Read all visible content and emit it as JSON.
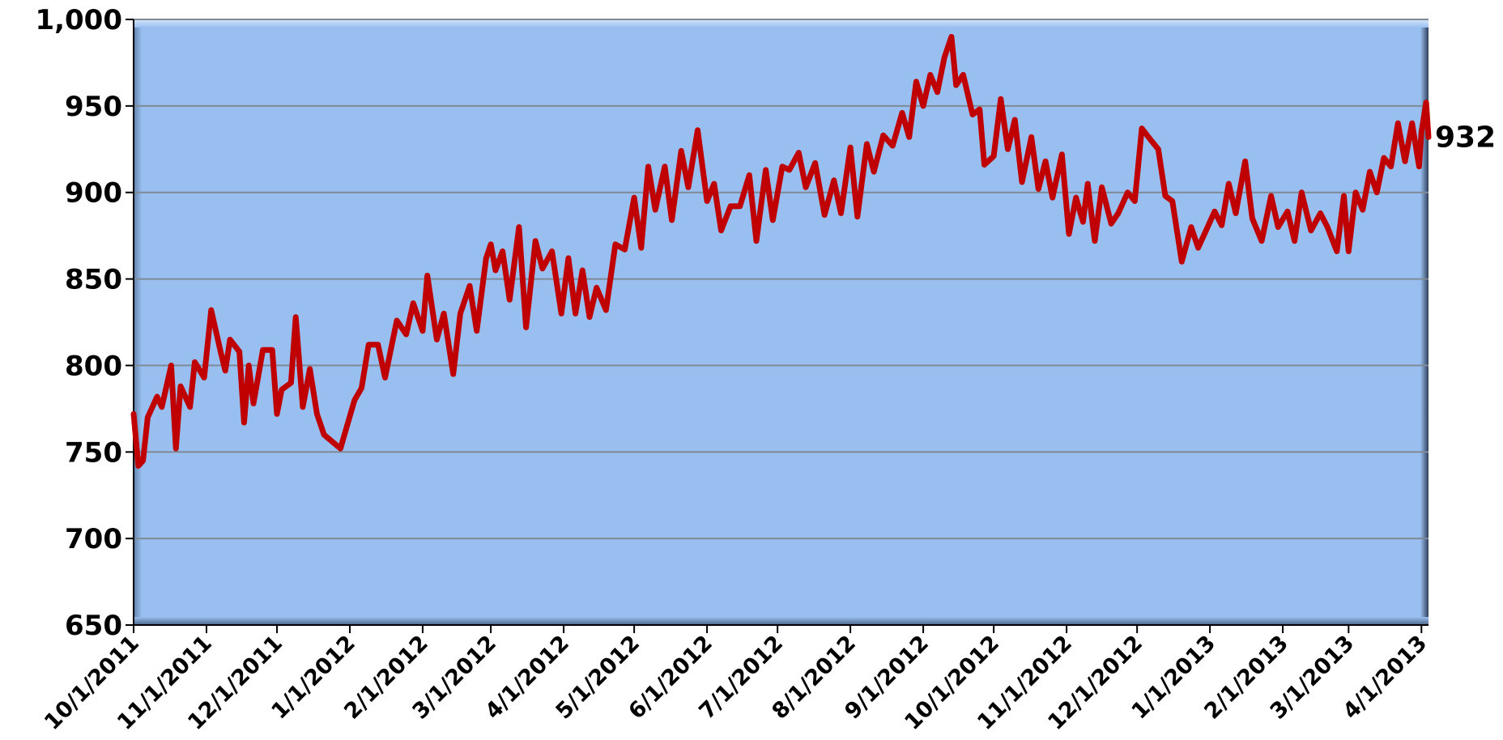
{
  "chart_data": {
    "type": "line",
    "x": [
      "10/1/2011",
      "10/3/2011",
      "10/5/2011",
      "10/7/2011",
      "10/11/2011",
      "10/13/2011",
      "10/17/2011",
      "10/19/2011",
      "10/21/2011",
      "10/25/2011",
      "10/27/2011",
      "10/31/2011",
      "11/3/2011",
      "11/7/2011",
      "11/9/2011",
      "11/11/2011",
      "11/15/2011",
      "11/17/2011",
      "11/19/2011",
      "11/21/2011",
      "11/25/2011",
      "11/29/2011",
      "12/1/2011",
      "12/3/2011",
      "12/7/2011",
      "12/9/2011",
      "12/12/2011",
      "12/15/2011",
      "12/18/2011",
      "12/21/2011",
      "12/28/2011",
      "1/3/2012",
      "1/6/2012",
      "1/9/2012",
      "1/13/2012",
      "1/16/2012",
      "1/21/2012",
      "1/25/2012",
      "1/28/2012",
      "2/1/2012",
      "2/3/2012",
      "2/7/2012",
      "2/10/2012",
      "2/14/2012",
      "2/17/2012",
      "2/21/2012",
      "2/24/2012",
      "2/28/2012",
      "3/1/2012",
      "3/3/2012",
      "3/6/2012",
      "3/9/2012",
      "3/13/2012",
      "3/16/2012",
      "3/20/2012",
      "3/23/2012",
      "3/27/2012",
      "3/31/2012",
      "4/3/2012",
      "4/6/2012",
      "4/9/2012",
      "4/12/2012",
      "4/15/2012",
      "4/19/2012",
      "4/23/2012",
      "4/27/2012",
      "5/1/2012",
      "5/4/2012",
      "5/7/2012",
      "5/10/2012",
      "5/14/2012",
      "5/17/2012",
      "5/21/2012",
      "5/24/2012",
      "5/28/2012",
      "6/1/2012",
      "6/4/2012",
      "6/7/2012",
      "6/11/2012",
      "6/15/2012",
      "6/19/2012",
      "6/22/2012",
      "6/26/2012",
      "6/29/2012",
      "7/3/2012",
      "7/6/2012",
      "7/10/2012",
      "7/13/2012",
      "7/17/2012",
      "7/21/2012",
      "7/25/2012",
      "7/28/2012",
      "8/1/2012",
      "8/4/2012",
      "8/8/2012",
      "8/11/2012",
      "8/15/2012",
      "8/19/2012",
      "8/23/2012",
      "8/26/2012",
      "8/29/2012",
      "9/1/2012",
      "9/4/2012",
      "9/7/2012",
      "9/10/2012",
      "9/13/2012",
      "9/15/2012",
      "9/18/2012",
      "9/22/2012",
      "9/25/2012",
      "9/27/2012",
      "10/1/2012",
      "10/4/2012",
      "10/7/2012",
      "10/10/2012",
      "10/13/2012",
      "10/17/2012",
      "10/20/2012",
      "10/23/2012",
      "10/26/2012",
      "10/30/2012",
      "11/2/2012",
      "11/5/2012",
      "11/8/2012",
      "11/10/2012",
      "11/13/2012",
      "11/16/2012",
      "11/20/2012",
      "11/23/2012",
      "11/27/2012",
      "11/30/2012",
      "12/3/2012",
      "12/7/2012",
      "12/10/2012",
      "12/13/2012",
      "12/16/2012",
      "12/20/2012",
      "12/24/2012",
      "12/27/2012",
      "12/31/2012",
      "1/3/2013",
      "1/6/2013",
      "1/9/2013",
      "1/12/2013",
      "1/16/2013",
      "1/19/2013",
      "1/23/2013",
      "1/27/2013",
      "1/30/2013",
      "2/3/2013",
      "2/6/2013",
      "2/9/2013",
      "2/13/2013",
      "2/17/2013",
      "2/20/2013",
      "2/24/2013",
      "2/27/2013",
      "3/1/2013",
      "3/4/2013",
      "3/7/2013",
      "3/10/2013",
      "3/13/2013",
      "3/16/2013",
      "3/19/2013",
      "3/22/2013",
      "3/25/2013",
      "3/28/2013",
      "3/31/2013",
      "4/1/2013",
      "4/3/2013",
      "4/4/2013"
    ],
    "series": [
      {
        "color": "#c00000",
        "values": [
          772,
          742,
          745,
          770,
          782,
          776,
          800,
          752,
          788,
          776,
          802,
          793,
          832,
          808,
          797,
          815,
          808,
          767,
          800,
          778,
          809,
          809,
          772,
          786,
          790,
          828,
          776,
          798,
          772,
          760,
          752,
          780,
          787,
          812,
          812,
          793,
          826,
          818,
          836,
          820,
          852,
          815,
          830,
          795,
          830,
          846,
          820,
          862,
          870,
          855,
          866,
          838,
          880,
          822,
          872,
          856,
          866,
          830,
          862,
          830,
          855,
          828,
          845,
          832,
          870,
          867,
          897,
          868,
          915,
          890,
          915,
          884,
          924,
          903,
          936,
          895,
          905,
          878,
          892,
          892,
          910,
          872,
          913,
          884,
          915,
          913,
          923,
          903,
          917,
          887,
          907,
          888,
          926,
          886,
          928,
          912,
          933,
          927,
          946,
          932,
          964,
          950,
          968,
          958,
          978,
          990,
          962,
          968,
          945,
          948,
          916,
          921,
          954,
          925,
          942,
          906,
          932,
          902,
          918,
          897,
          922,
          876,
          897,
          883,
          905,
          872,
          903,
          882,
          888,
          900,
          895,
          937,
          930,
          925,
          898,
          895,
          860,
          880,
          868,
          880,
          889,
          881,
          905,
          888,
          918,
          885,
          872,
          898,
          880,
          889,
          872,
          900,
          878,
          888,
          880,
          866,
          898,
          866,
          900,
          890,
          912,
          900,
          920,
          915,
          940,
          918,
          940,
          915,
          935,
          952,
          932
        ]
      }
    ],
    "xlim": [
      "10/1/2011",
      "4/4/2013"
    ],
    "xticks": [
      "10/1/2011",
      "11/1/2011",
      "12/1/2011",
      "1/1/2012",
      "2/1/2012",
      "3/1/2012",
      "4/1/2012",
      "5/1/2012",
      "6/1/2012",
      "7/1/2012",
      "8/1/2012",
      "9/1/2012",
      "10/1/2012",
      "11/1/2012",
      "12/1/2012",
      "1/1/2013",
      "2/1/2013",
      "3/1/2013",
      "4/1/2013"
    ],
    "ylim": [
      650,
      1000
    ],
    "yticks": [
      650,
      700,
      750,
      800,
      850,
      900,
      950,
      {
        "value": 1000,
        "label": "1,000"
      }
    ],
    "grid": true
  }
}
